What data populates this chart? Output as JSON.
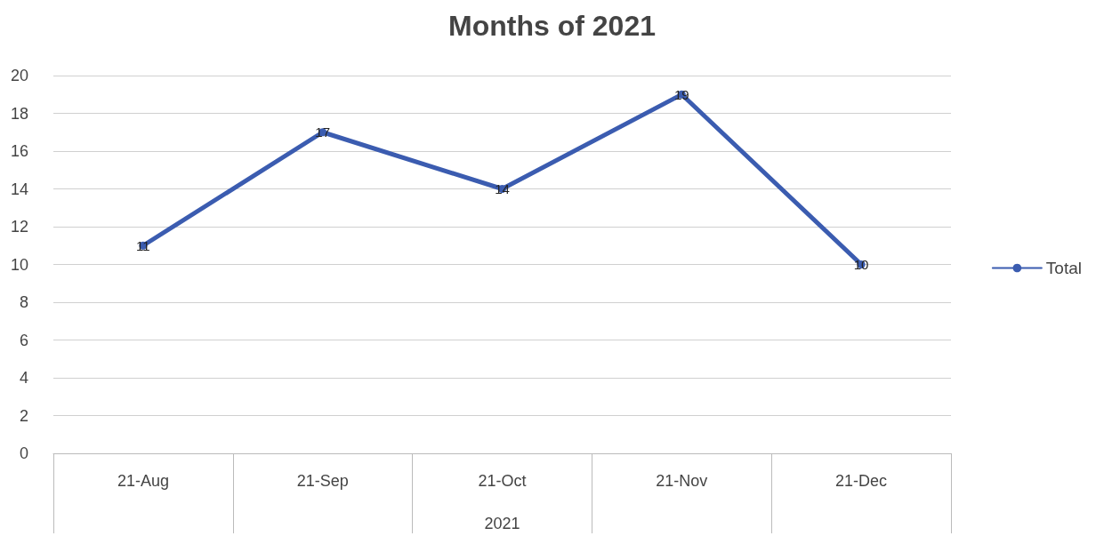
{
  "chart_data": {
    "type": "line",
    "title": "Months of 2021",
    "xlabel": "2021",
    "categories": [
      "21-Aug",
      "21-Sep",
      "21-Oct",
      "21-Nov",
      "21-Dec"
    ],
    "series": [
      {
        "name": "Total",
        "color": "#3b5cb0",
        "values": [
          11,
          17,
          14,
          19,
          10
        ]
      }
    ],
    "ylim": [
      0,
      20
    ],
    "yticks": [
      0,
      2,
      4,
      6,
      8,
      10,
      12,
      14,
      16,
      18,
      20
    ],
    "grid": "y",
    "legend": "right",
    "marker": "circle",
    "line_style": "solid",
    "data_labels": true
  }
}
